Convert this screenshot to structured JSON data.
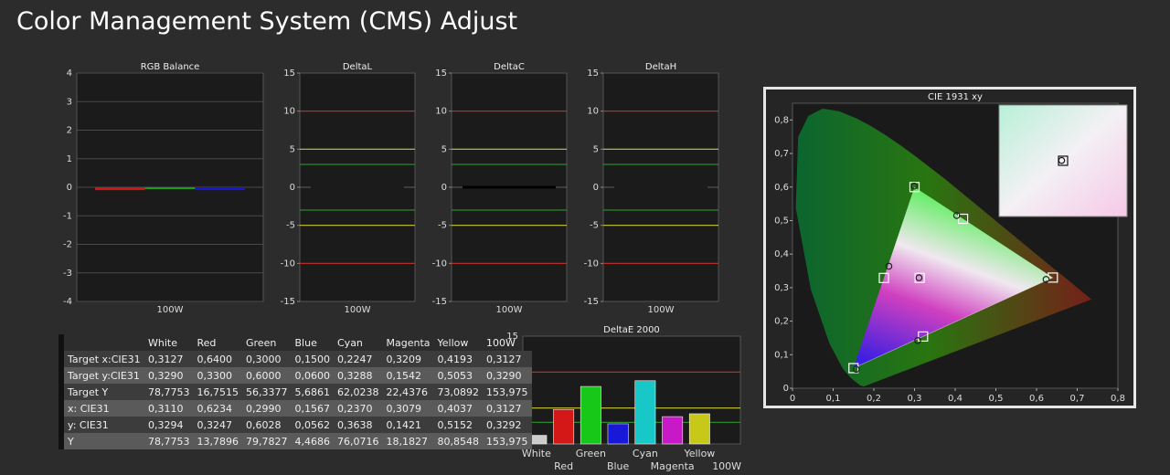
{
  "page": {
    "title": "Color Management System (CMS) Adjust"
  },
  "colors": {
    "red_line": "#c8322a",
    "yellow_line": "#c8c83a",
    "green_line": "#2a8a2a",
    "grid": "#4a4a4a",
    "bg_plot": "#1b1b1b"
  },
  "chart_data": [
    {
      "id": "rgb_balance",
      "type": "bar",
      "title": "RGB Balance",
      "categories": [
        "100W"
      ],
      "ylim": [
        -4,
        4
      ],
      "yticks": [
        4,
        3,
        2,
        1,
        0,
        -1,
        -2,
        -3,
        -4
      ],
      "series": [
        {
          "name": "R",
          "color": "#c81818",
          "values": [
            -0.1
          ]
        },
        {
          "name": "G",
          "color": "#18a018",
          "values": [
            0.0
          ]
        },
        {
          "name": "B",
          "color": "#1818d0",
          "values": [
            -0.1
          ]
        }
      ]
    },
    {
      "id": "delta_l",
      "type": "line",
      "title": "DeltaL",
      "categories": [
        "100W"
      ],
      "ylim": [
        -15,
        15
      ],
      "yticks": [
        "15",
        "10",
        "5",
        "0",
        "-5",
        "-10",
        "-15"
      ],
      "value": 0.0,
      "value_color": "#1b1b1b"
    },
    {
      "id": "delta_c",
      "type": "line",
      "title": "DeltaC",
      "categories": [
        "100W"
      ],
      "ylim": [
        -15,
        15
      ],
      "yticks": [
        "15",
        "10",
        "5",
        "0",
        "-5",
        "-10",
        "-15"
      ],
      "value": 0.0,
      "value_color": "#000000"
    },
    {
      "id": "delta_h",
      "type": "line",
      "title": "DeltaH",
      "categories": [
        "100W"
      ],
      "ylim": [
        -15,
        15
      ],
      "yticks": [
        "15",
        "10",
        "5",
        "0",
        "-5",
        "-10",
        "-15"
      ],
      "value": 0.0,
      "value_color": "#1b1b1b"
    },
    {
      "id": "delta_e",
      "type": "bar",
      "title": "DeltaE 2000",
      "categories": [
        "White",
        "Red",
        "Green",
        "Blue",
        "Cyan",
        "Magenta",
        "Yellow",
        "100W"
      ],
      "values": [
        1.2,
        4.8,
        8.0,
        2.8,
        8.8,
        3.8,
        4.2,
        0
      ],
      "colors": [
        "#cccccc",
        "#d41818",
        "#18c818",
        "#1818d8",
        "#18c8c8",
        "#c818c8",
        "#c8c818",
        "#444444"
      ],
      "ylim": [
        0,
        15
      ],
      "yticks": [
        "15",
        "10",
        "5",
        "0"
      ]
    },
    {
      "id": "cie_xy",
      "type": "scatter",
      "title": "CIE 1931 xy",
      "xlim": [
        0,
        0.8
      ],
      "ylim": [
        0,
        0.85
      ],
      "xticks": [
        "0",
        "0,1",
        "0,2",
        "0,3",
        "0,4",
        "0,5",
        "0,6",
        "0,7",
        "0,8"
      ],
      "yticks": [
        "0",
        "0,1",
        "0,2",
        "0,3",
        "0,4",
        "0,5",
        "0,6",
        "0,7",
        "0,8"
      ],
      "targets": [
        {
          "name": "White",
          "x": 0.3127,
          "y": 0.329
        },
        {
          "name": "Red",
          "x": 0.64,
          "y": 0.33
        },
        {
          "name": "Green",
          "x": 0.3,
          "y": 0.6
        },
        {
          "name": "Blue",
          "x": 0.15,
          "y": 0.06
        },
        {
          "name": "Cyan",
          "x": 0.2247,
          "y": 0.3288
        },
        {
          "name": "Magenta",
          "x": 0.3209,
          "y": 0.1542
        },
        {
          "name": "Yellow",
          "x": 0.4193,
          "y": 0.5053
        }
      ],
      "measured": [
        {
          "name": "White",
          "x": 0.311,
          "y": 0.3294
        },
        {
          "name": "Red",
          "x": 0.6234,
          "y": 0.3247
        },
        {
          "name": "Green",
          "x": 0.299,
          "y": 0.6028
        },
        {
          "name": "Blue",
          "x": 0.1567,
          "y": 0.0562
        },
        {
          "name": "Cyan",
          "x": 0.237,
          "y": 0.3638
        },
        {
          "name": "Magenta",
          "x": 0.3079,
          "y": 0.1421
        },
        {
          "name": "Yellow",
          "x": 0.4037,
          "y": 0.5152
        }
      ]
    }
  ],
  "table": {
    "headers": [
      "",
      "White",
      "Red",
      "Green",
      "Blue",
      "Cyan",
      "Magenta",
      "Yellow",
      "100W"
    ],
    "rows": [
      [
        "Target x:CIE31",
        "0,3127",
        "0,6400",
        "0,3000",
        "0,1500",
        "0,2247",
        "0,3209",
        "0,4193",
        "0,3127"
      ],
      [
        "Target y:CIE31",
        "0,3290",
        "0,3300",
        "0,6000",
        "0,0600",
        "0,3288",
        "0,1542",
        "0,5053",
        "0,3290"
      ],
      [
        "Target Y",
        "78,7753",
        "16,7515",
        "56,3377",
        "5,6861",
        "62,0238",
        "22,4376",
        "73,0892",
        "153,975"
      ],
      [
        "x: CIE31",
        "0,3110",
        "0,6234",
        "0,2990",
        "0,1567",
        "0,2370",
        "0,3079",
        "0,4037",
        "0,3127"
      ],
      [
        "y: CIE31",
        "0,3294",
        "0,3247",
        "0,6028",
        "0,0562",
        "0,3638",
        "0,1421",
        "0,5152",
        "0,3292"
      ],
      [
        "Y",
        "78,7753",
        "13,7896",
        "79,7827",
        "4,4686",
        "76,0716",
        "18,1827",
        "80,8548",
        "153,975"
      ]
    ]
  }
}
